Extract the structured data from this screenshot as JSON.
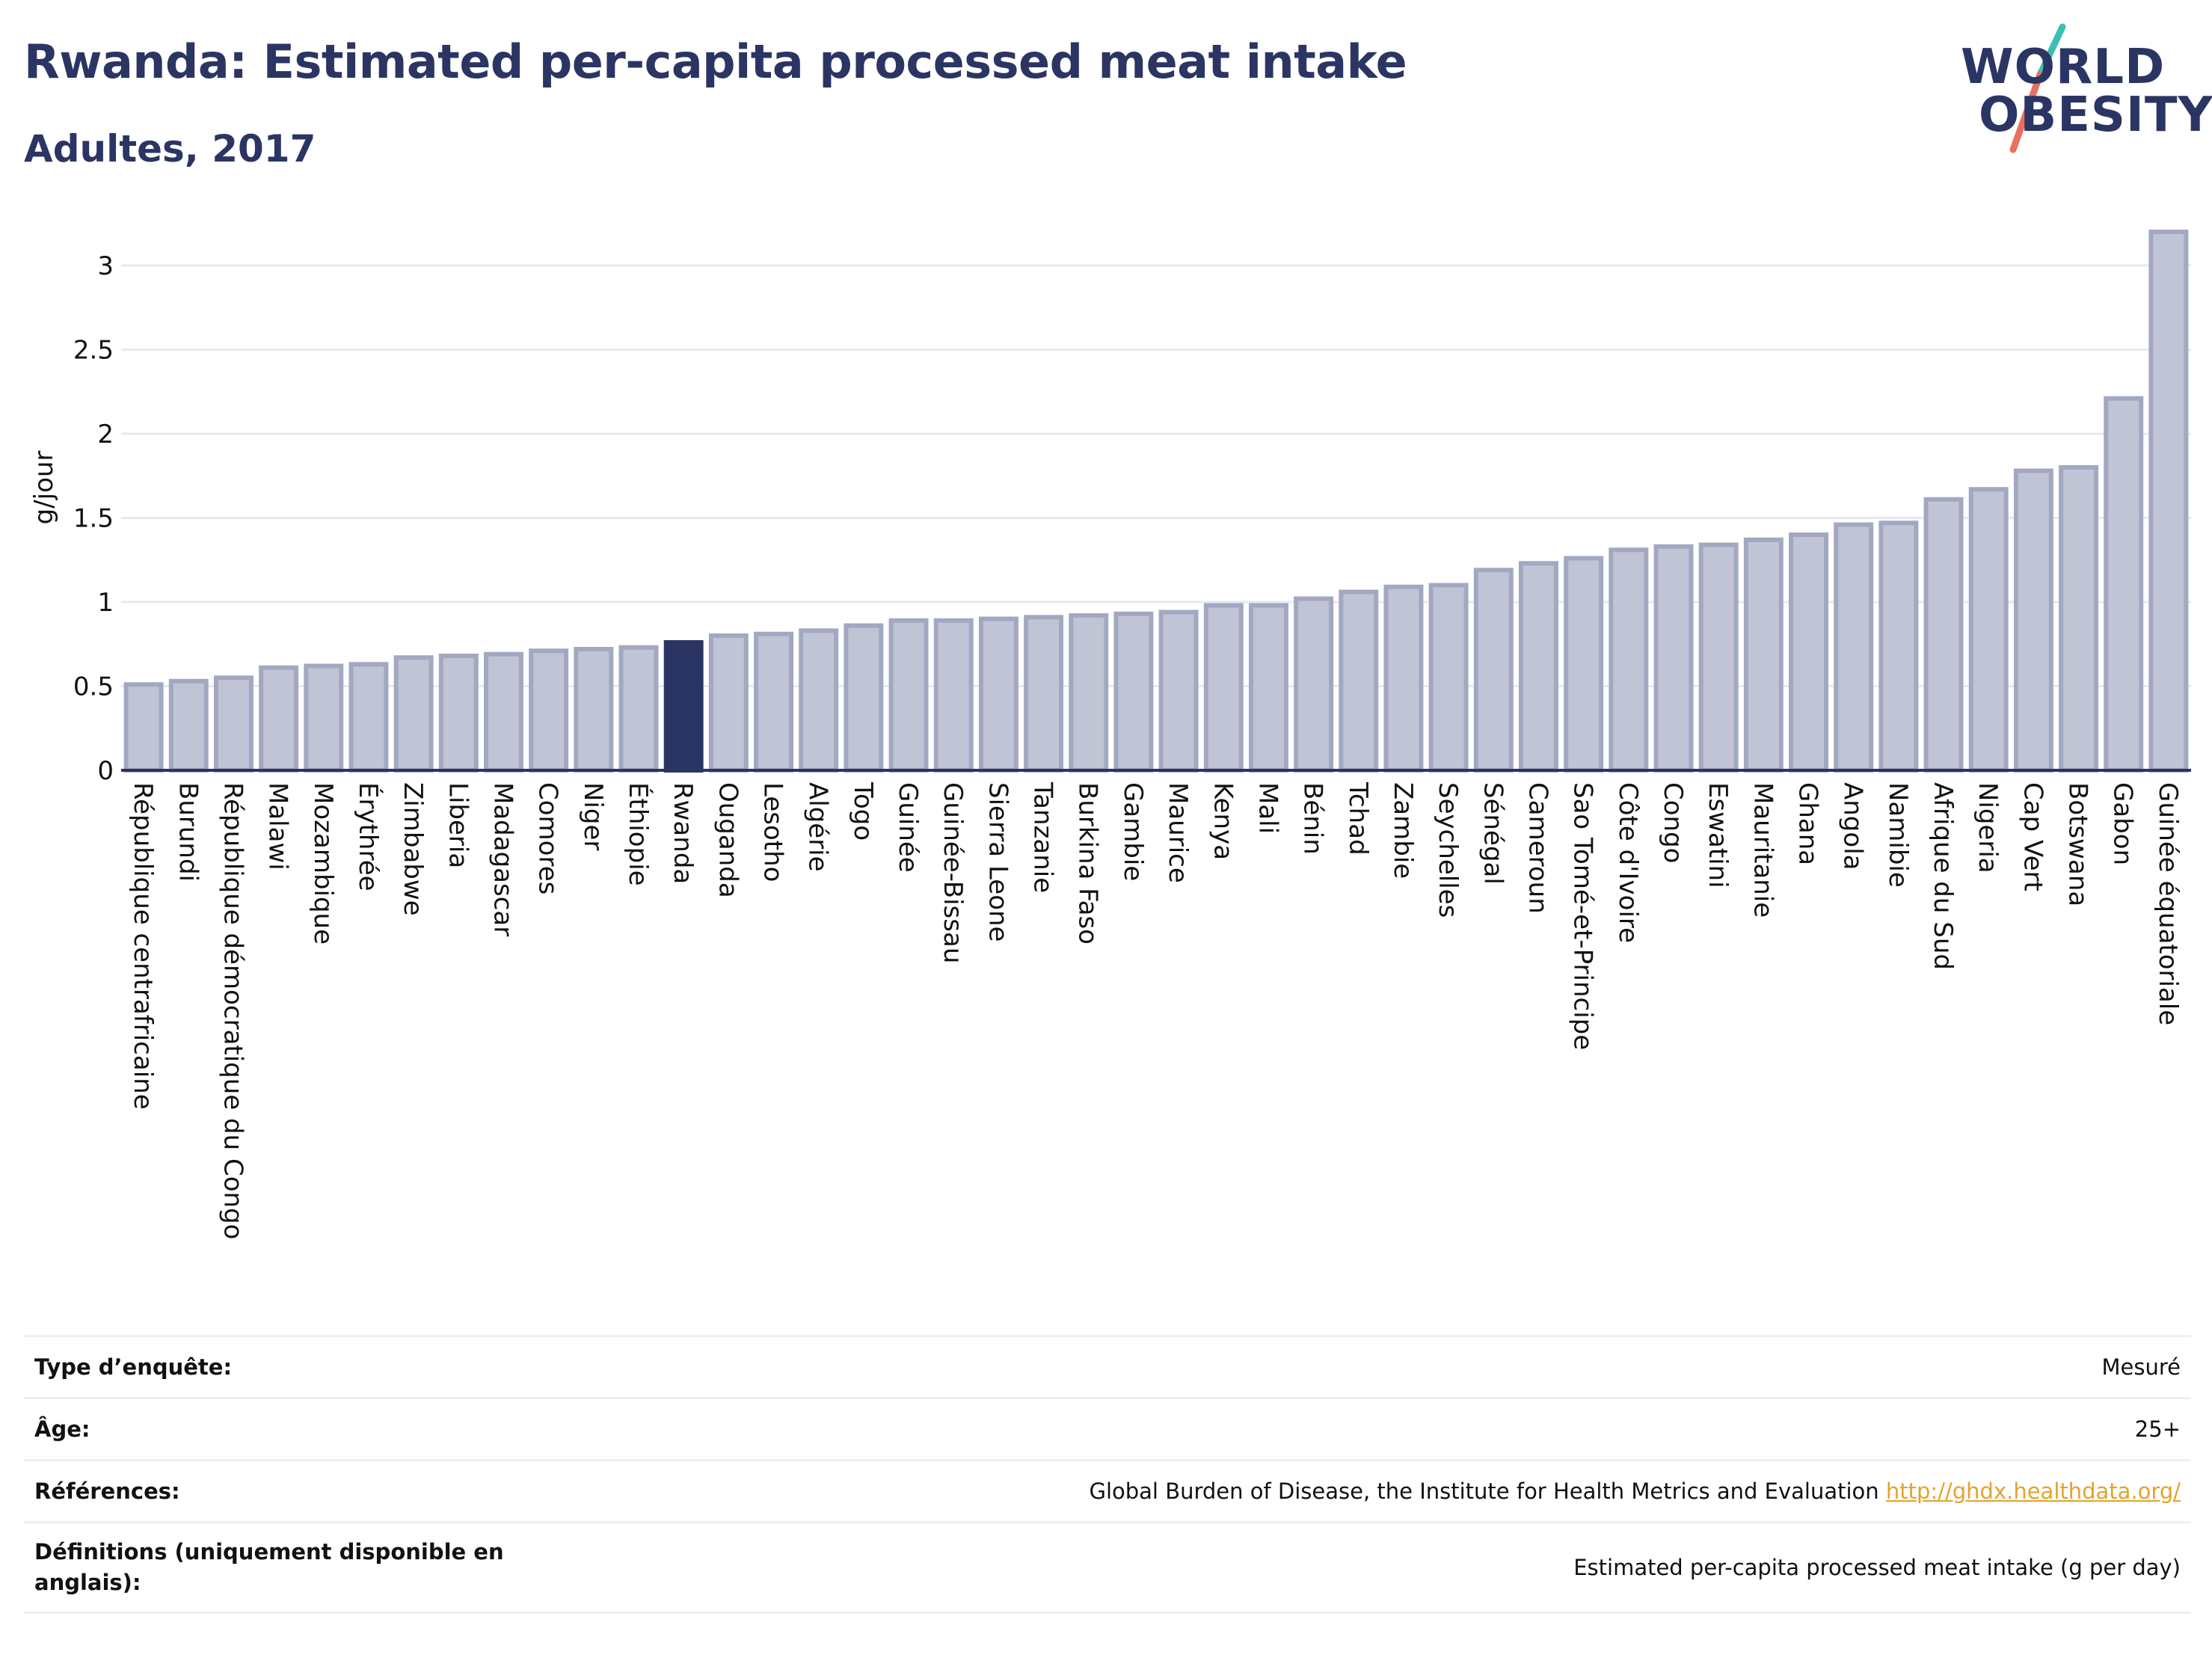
{
  "header": {
    "title": "Rwanda: Estimated per-capita processed meat intake",
    "subtitle": "Adultes, 2017"
  },
  "logo": {
    "line1": "WORLD",
    "line2": "OBESITY",
    "colors": {
      "text": "#2b3563",
      "slash_top": "#3cbfb3",
      "slash_bottom": "#e8705f"
    }
  },
  "colors": {
    "bar_fill": "#c0c4d4",
    "bar_stroke": "#a2a8c1",
    "highlight_fill": "#2b3563",
    "axis": "#2b3563",
    "grid": "#e8e9f0"
  },
  "chart_data": {
    "type": "bar",
    "title": "Rwanda: Estimated per-capita processed meat intake",
    "subtitle": "Adultes, 2017",
    "xlabel": "",
    "ylabel": "g/jour",
    "ylim": [
      0,
      3.2
    ],
    "yticks": [
      0,
      0.5,
      1,
      1.5,
      2,
      2.5,
      3
    ],
    "ytick_labels": [
      "0",
      "0.5",
      "1",
      "1.5",
      "2",
      "2.5",
      "3"
    ],
    "grid": true,
    "highlight": "Rwanda",
    "categories": [
      "République centrafricaine",
      "Burundi",
      "République démocratique du Congo",
      "Malawi",
      "Mozambique",
      "Érythrée",
      "Zimbabwe",
      "Liberia",
      "Madagascar",
      "Comores",
      "Niger",
      "Éthiopie",
      "Rwanda",
      "Ouganda",
      "Lesotho",
      "Algérie",
      "Togo",
      "Guinée",
      "Guinée-Bissau",
      "Sierra Leone",
      "Tanzanie",
      "Burkina Faso",
      "Gambie",
      "Maurice",
      "Kenya",
      "Mali",
      "Bénin",
      "Tchad",
      "Zambie",
      "Seychelles",
      "Sénégal",
      "Cameroun",
      "Sao Tomé-et-Principe",
      "Côte d'Ivoire",
      "Congo",
      "Eswatini",
      "Mauritanie",
      "Ghana",
      "Angola",
      "Namibie",
      "Afrique du Sud",
      "Nigeria",
      "Cap Vert",
      "Botswana",
      "Gabon",
      "Guinée équatoriale"
    ],
    "values": [
      0.51,
      0.53,
      0.55,
      0.61,
      0.62,
      0.63,
      0.67,
      0.68,
      0.69,
      0.71,
      0.72,
      0.73,
      0.76,
      0.8,
      0.81,
      0.83,
      0.86,
      0.89,
      0.89,
      0.9,
      0.91,
      0.92,
      0.93,
      0.94,
      0.98,
      0.98,
      1.02,
      1.06,
      1.09,
      1.1,
      1.19,
      1.23,
      1.26,
      1.31,
      1.33,
      1.34,
      1.37,
      1.4,
      1.46,
      1.47,
      1.61,
      1.67,
      1.78,
      1.8,
      2.21,
      3.2
    ]
  },
  "info": [
    {
      "label": "Type d’enquête:",
      "value": "Mesuré"
    },
    {
      "label": "Âge:",
      "value": "25+"
    },
    {
      "label": "Références:",
      "value": "Global Burden of Disease, the Institute for Health Metrics and Evaluation",
      "link": "http://ghdx.healthdata.org/"
    },
    {
      "label": "Définitions (uniquement disponible en anglais):",
      "value": "Estimated per-capita processed meat intake (g per day)"
    }
  ]
}
